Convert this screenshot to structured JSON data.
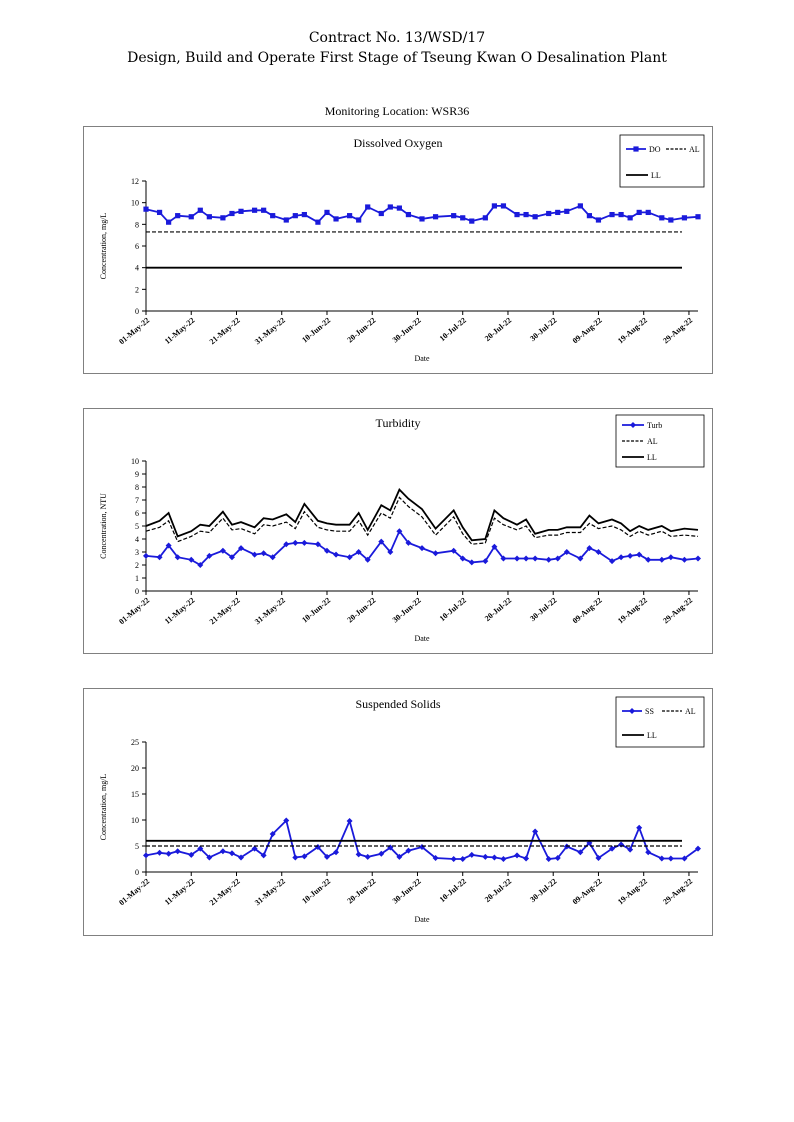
{
  "header": {
    "contract": "Contract No. 13/WSD/17",
    "project": "Design, Build and Operate First Stage of Tseung Kwan O Desalination Plant"
  },
  "monitoring_location": "Monitoring Location: WSR36",
  "colors": {
    "series": "#1a1adb",
    "line": "#000000"
  },
  "chart_data": [
    {
      "type": "line",
      "title": "Dissolved Oxygen",
      "ylabel": "Concentration, mg/L",
      "xlabel": "Date",
      "ylim": [
        0,
        12
      ],
      "yticks": [
        0,
        2,
        4,
        6,
        8,
        10,
        12
      ],
      "xlim": [
        "2022-05-01",
        "2022-08-31"
      ],
      "xticks": [
        "01-May-22",
        "11-May-22",
        "21-May-22",
        "31-May-22",
        "10-Jun-22",
        "20-Jun-22",
        "30-Jun-22",
        "10-Jul-22",
        "20-Jul-22",
        "30-Jul-22",
        "09-Aug-22",
        "19-Aug-22",
        "29-Aug-22"
      ],
      "grid": false,
      "legend_layout": "rows",
      "marker": "square",
      "series": [
        {
          "name": "DO",
          "style": "marker-line",
          "x": [
            "2022-05-01",
            "2022-05-04",
            "2022-05-06",
            "2022-05-08",
            "2022-05-11",
            "2022-05-13",
            "2022-05-15",
            "2022-05-18",
            "2022-05-20",
            "2022-05-22",
            "2022-05-25",
            "2022-05-27",
            "2022-05-29",
            "2022-06-01",
            "2022-06-03",
            "2022-06-05",
            "2022-06-08",
            "2022-06-10",
            "2022-06-12",
            "2022-06-15",
            "2022-06-17",
            "2022-06-19",
            "2022-06-22",
            "2022-06-24",
            "2022-06-26",
            "2022-06-28",
            "2022-07-01",
            "2022-07-04",
            "2022-07-08",
            "2022-07-10",
            "2022-07-12",
            "2022-07-15",
            "2022-07-17",
            "2022-07-19",
            "2022-07-22",
            "2022-07-24",
            "2022-07-26",
            "2022-07-29",
            "2022-07-31",
            "2022-08-02",
            "2022-08-05",
            "2022-08-07",
            "2022-08-09",
            "2022-08-12",
            "2022-08-14",
            "2022-08-16",
            "2022-08-18",
            "2022-08-20",
            "2022-08-23",
            "2022-08-25",
            "2022-08-28",
            "2022-08-31"
          ],
          "values": [
            9.4,
            9.1,
            8.2,
            8.8,
            8.7,
            9.3,
            8.7,
            8.6,
            9.0,
            9.2,
            9.3,
            9.3,
            8.8,
            8.4,
            8.8,
            8.9,
            8.2,
            9.1,
            8.5,
            8.8,
            8.4,
            9.6,
            9.0,
            9.6,
            9.5,
            8.9,
            8.5,
            8.7,
            8.8,
            8.6,
            8.3,
            8.6,
            9.7,
            9.7,
            8.9,
            8.9,
            8.7,
            9.0,
            9.1,
            9.2,
            9.7,
            8.8,
            8.4,
            8.9,
            8.9,
            8.6,
            9.1,
            9.1,
            8.6,
            8.4,
            8.6,
            8.7
          ]
        },
        {
          "name": "AL",
          "style": "dashed",
          "values": [
            7.3
          ]
        },
        {
          "name": "LL",
          "style": "solid",
          "values": [
            4.0
          ]
        }
      ]
    },
    {
      "type": "line",
      "title": "Turbidity",
      "ylabel": "Concentration, NTU",
      "xlabel": "Date",
      "ylim": [
        0,
        10
      ],
      "yticks": [
        0,
        1,
        2,
        3,
        4,
        5,
        6,
        7,
        8,
        9,
        10
      ],
      "xlim": [
        "2022-05-01",
        "2022-08-31"
      ],
      "xticks": [
        "01-May-22",
        "11-May-22",
        "21-May-22",
        "31-May-22",
        "10-Jun-22",
        "20-Jun-22",
        "30-Jun-22",
        "10-Jul-22",
        "20-Jul-22",
        "30-Jul-22",
        "09-Aug-22",
        "19-Aug-22",
        "29-Aug-22"
      ],
      "grid": false,
      "legend_layout": "stack",
      "marker": "diamond",
      "x": [
        "2022-05-01",
        "2022-05-04",
        "2022-05-06",
        "2022-05-08",
        "2022-05-11",
        "2022-05-13",
        "2022-05-15",
        "2022-05-18",
        "2022-05-20",
        "2022-05-22",
        "2022-05-25",
        "2022-05-27",
        "2022-05-29",
        "2022-06-01",
        "2022-06-03",
        "2022-06-05",
        "2022-06-08",
        "2022-06-10",
        "2022-06-12",
        "2022-06-15",
        "2022-06-17",
        "2022-06-19",
        "2022-06-22",
        "2022-06-24",
        "2022-06-26",
        "2022-06-28",
        "2022-07-01",
        "2022-07-04",
        "2022-07-08",
        "2022-07-10",
        "2022-07-12",
        "2022-07-15",
        "2022-07-17",
        "2022-07-19",
        "2022-07-22",
        "2022-07-24",
        "2022-07-26",
        "2022-07-29",
        "2022-07-31",
        "2022-08-02",
        "2022-08-05",
        "2022-08-07",
        "2022-08-09",
        "2022-08-12",
        "2022-08-14",
        "2022-08-16",
        "2022-08-18",
        "2022-08-20",
        "2022-08-23",
        "2022-08-25",
        "2022-08-28",
        "2022-08-31"
      ],
      "series": [
        {
          "name": "Turb",
          "style": "marker-line",
          "values": [
            2.7,
            2.6,
            3.5,
            2.6,
            2.4,
            2.0,
            2.7,
            3.1,
            2.6,
            3.3,
            2.8,
            2.9,
            2.6,
            3.6,
            3.7,
            3.7,
            3.6,
            3.1,
            2.8,
            2.6,
            3.0,
            2.4,
            3.8,
            3.0,
            4.6,
            3.7,
            3.3,
            2.9,
            3.1,
            2.5,
            2.2,
            2.3,
            3.4,
            2.5,
            2.5,
            2.5,
            2.5,
            2.4,
            2.5,
            3.0,
            2.5,
            3.3,
            3.0,
            2.3,
            2.6,
            2.7,
            2.8,
            2.4,
            2.4,
            2.6,
            2.4,
            2.5
          ]
        },
        {
          "name": "AL",
          "style": "dashed",
          "values": [
            4.6,
            4.9,
            5.4,
            3.8,
            4.2,
            4.6,
            4.5,
            5.6,
            4.7,
            4.8,
            4.4,
            5.1,
            5.0,
            5.3,
            4.8,
            6.1,
            4.9,
            4.7,
            4.6,
            4.6,
            5.4,
            4.3,
            6.0,
            5.6,
            7.2,
            6.5,
            5.7,
            4.3,
            5.7,
            4.4,
            3.6,
            3.7,
            5.6,
            5.1,
            4.7,
            5.0,
            4.1,
            4.3,
            4.3,
            4.5,
            4.5,
            5.2,
            4.8,
            5.0,
            4.7,
            4.2,
            4.6,
            4.3,
            4.6,
            4.2,
            4.3,
            4.2
          ]
        },
        {
          "name": "LL",
          "style": "solid",
          "values": [
            5.0,
            5.4,
            6.0,
            4.2,
            4.6,
            5.1,
            5.0,
            6.1,
            5.1,
            5.3,
            4.9,
            5.6,
            5.5,
            5.9,
            5.3,
            6.7,
            5.4,
            5.2,
            5.1,
            5.1,
            6.0,
            4.7,
            6.6,
            6.2,
            7.8,
            7.1,
            6.3,
            4.8,
            6.2,
            4.9,
            3.9,
            4.0,
            6.2,
            5.6,
            5.1,
            5.5,
            4.4,
            4.7,
            4.7,
            4.9,
            4.9,
            5.8,
            5.2,
            5.5,
            5.2,
            4.6,
            5.0,
            4.7,
            5.0,
            4.6,
            4.8,
            4.7
          ]
        }
      ]
    },
    {
      "type": "line",
      "title": "Suspended Solids",
      "ylabel": "Concentration, mg/L",
      "xlabel": "Date",
      "ylim": [
        0,
        25
      ],
      "yticks": [
        0,
        5,
        10,
        15,
        20,
        25
      ],
      "xlim": [
        "2022-05-01",
        "2022-08-31"
      ],
      "xticks": [
        "01-May-22",
        "11-May-22",
        "21-May-22",
        "31-May-22",
        "10-Jun-22",
        "20-Jun-22",
        "30-Jun-22",
        "10-Jul-22",
        "20-Jul-22",
        "30-Jul-22",
        "09-Aug-22",
        "19-Aug-22",
        "29-Aug-22"
      ],
      "grid": false,
      "legend_layout": "rows",
      "marker": "diamond",
      "series": [
        {
          "name": "SS",
          "style": "marker-line",
          "x": [
            "2022-05-01",
            "2022-05-04",
            "2022-05-06",
            "2022-05-08",
            "2022-05-11",
            "2022-05-13",
            "2022-05-15",
            "2022-05-18",
            "2022-05-20",
            "2022-05-22",
            "2022-05-25",
            "2022-05-27",
            "2022-05-29",
            "2022-06-01",
            "2022-06-03",
            "2022-06-05",
            "2022-06-08",
            "2022-06-10",
            "2022-06-12",
            "2022-06-15",
            "2022-06-17",
            "2022-06-19",
            "2022-06-22",
            "2022-06-24",
            "2022-06-26",
            "2022-06-28",
            "2022-07-01",
            "2022-07-04",
            "2022-07-08",
            "2022-07-10",
            "2022-07-12",
            "2022-07-15",
            "2022-07-17",
            "2022-07-19",
            "2022-07-22",
            "2022-07-24",
            "2022-07-26",
            "2022-07-29",
            "2022-07-31",
            "2022-08-02",
            "2022-08-05",
            "2022-08-07",
            "2022-08-09",
            "2022-08-12",
            "2022-08-14",
            "2022-08-16",
            "2022-08-18",
            "2022-08-20",
            "2022-08-23",
            "2022-08-25",
            "2022-08-28",
            "2022-08-31"
          ],
          "values": [
            3.2,
            3.7,
            3.5,
            4.0,
            3.3,
            4.5,
            2.8,
            4.0,
            3.6,
            2.8,
            4.5,
            3.2,
            7.3,
            9.9,
            2.8,
            3.0,
            4.8,
            2.9,
            3.8,
            9.8,
            3.4,
            2.9,
            3.5,
            4.7,
            2.9,
            4.1,
            4.8,
            2.7,
            2.5,
            2.5,
            3.3,
            2.9,
            2.8,
            2.5,
            3.2,
            2.6,
            7.8,
            2.5,
            2.7,
            4.9,
            3.8,
            5.6,
            2.7,
            4.5,
            5.3,
            4.3,
            8.5,
            3.8,
            2.6,
            2.6,
            2.6,
            4.5
          ]
        },
        {
          "name": "AL",
          "style": "dashed",
          "values": [
            5.0
          ]
        },
        {
          "name": "LL",
          "style": "solid",
          "values": [
            6.0
          ]
        }
      ]
    }
  ]
}
